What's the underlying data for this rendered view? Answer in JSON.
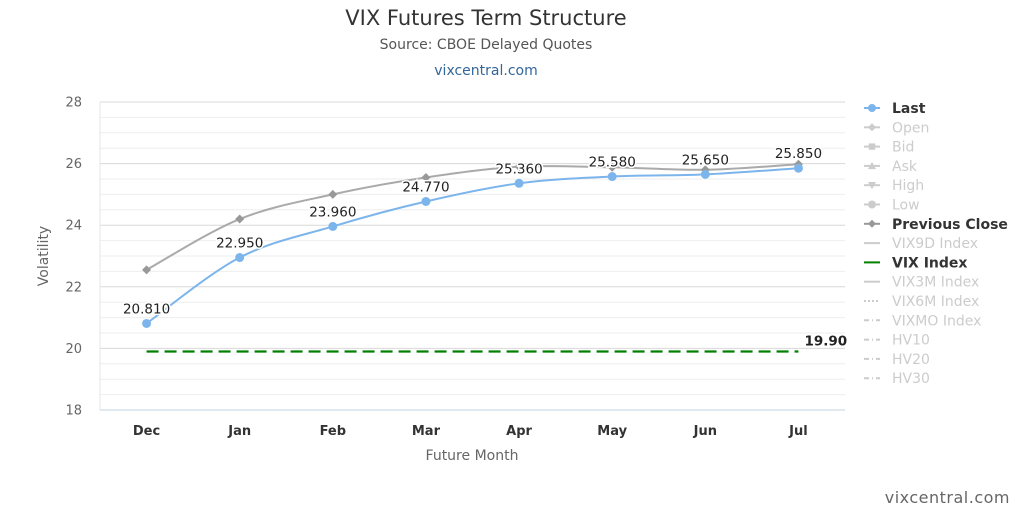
{
  "header": {
    "title": "VIX Futures Term Structure",
    "subtitle": "Source: CBOE Delayed Quotes",
    "link": "vixcentral.com",
    "watermark": "vixcentral.com"
  },
  "chart_data": {
    "type": "line",
    "title": "VIX Futures Term Structure",
    "subtitle": "Source: CBOE Delayed Quotes",
    "xlabel": "Future Month",
    "ylabel": "Volatility",
    "categories": [
      "Dec",
      "Jan",
      "Feb",
      "Mar",
      "Apr",
      "May",
      "Jun",
      "Jul"
    ],
    "ylim": [
      18,
      28
    ],
    "yticks": [
      18,
      20,
      22,
      24,
      26,
      28
    ],
    "minor_grid_step": 0.5,
    "grid": true,
    "legend_position": "right",
    "series": [
      {
        "name": "Last",
        "values": [
          20.81,
          22.95,
          23.96,
          24.77,
          25.36,
          25.58,
          25.65,
          25.85
        ],
        "labels": [
          "20.810",
          "22.950",
          "23.960",
          "24.770",
          "25.360",
          "25.580",
          "25.650",
          "25.850"
        ],
        "color": "#7cb5ec",
        "marker": "circle",
        "visible": true
      },
      {
        "name": "Previous Close",
        "values": [
          22.55,
          24.2,
          25.0,
          25.55,
          25.9,
          25.88,
          25.8,
          25.98
        ],
        "color": "#aaaaaa",
        "marker": "diamond",
        "visible": true
      },
      {
        "name": "VIX Index",
        "values": [
          19.9,
          19.9,
          19.9,
          19.9,
          19.9,
          19.9,
          19.9,
          19.9
        ],
        "end_label": "19.90",
        "color": "#008000",
        "dash": "dashed",
        "visible": true
      }
    ],
    "legend": [
      {
        "name": "Last",
        "symbol": "circle",
        "line": "solid",
        "color": "#7cb5ec",
        "active": true
      },
      {
        "name": "Open",
        "symbol": "diamond",
        "line": "solid",
        "color": "#cccccc",
        "active": false
      },
      {
        "name": "Bid",
        "symbol": "square",
        "line": "solid",
        "color": "#cccccc",
        "active": false
      },
      {
        "name": "Ask",
        "symbol": "triangle",
        "line": "solid",
        "color": "#cccccc",
        "active": false
      },
      {
        "name": "High",
        "symbol": "triangle-down",
        "line": "solid",
        "color": "#cccccc",
        "active": false
      },
      {
        "name": "Low",
        "symbol": "circle",
        "line": "solid",
        "color": "#cccccc",
        "active": false
      },
      {
        "name": "Previous Close",
        "symbol": "diamond",
        "line": "solid",
        "color": "#999999",
        "active": true
      },
      {
        "name": "VIX9D Index",
        "symbol": "none",
        "line": "solid",
        "color": "#cccccc",
        "active": false
      },
      {
        "name": "VIX Index",
        "symbol": "none",
        "line": "solid",
        "color": "#008000",
        "active": true
      },
      {
        "name": "VIX3M Index",
        "symbol": "none",
        "line": "solid",
        "color": "#cccccc",
        "active": false
      },
      {
        "name": "VIX6M Index",
        "symbol": "none",
        "line": "dotted",
        "color": "#cccccc",
        "active": false
      },
      {
        "name": "VIXMO Index",
        "symbol": "none",
        "line": "dashdot",
        "color": "#cccccc",
        "active": false
      },
      {
        "name": "HV10",
        "symbol": "none",
        "line": "dashdot",
        "color": "#cccccc",
        "active": false
      },
      {
        "name": "HV20",
        "symbol": "none",
        "line": "dashdot",
        "color": "#cccccc",
        "active": false
      },
      {
        "name": "HV30",
        "symbol": "none",
        "line": "dashdot",
        "color": "#cccccc",
        "active": false
      }
    ]
  }
}
